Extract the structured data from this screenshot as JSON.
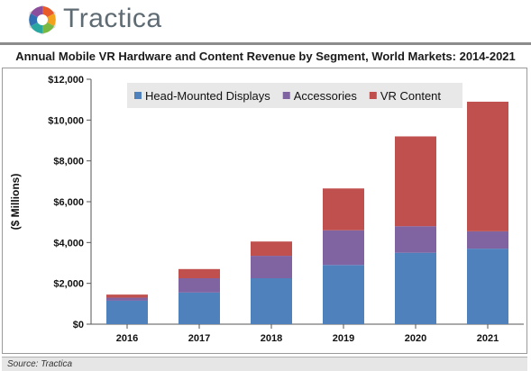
{
  "brand": {
    "name": "Tractica",
    "logo_icon": "hexagon-swirl-logo"
  },
  "source_text": "Source: Tractica",
  "chart_data": {
    "type": "bar",
    "stacked": true,
    "title": "Annual Mobile VR Hardware and Content Revenue by Segment, World Markets: 2014-2021",
    "xlabel": "",
    "ylabel": "($ Millions)",
    "categories": [
      "2016",
      "2017",
      "2018",
      "2019",
      "2020",
      "2021"
    ],
    "series": [
      {
        "name": "Head-Mounted Displays",
        "color": "#4f81bd",
        "values": [
          1150,
          1550,
          2250,
          2900,
          3500,
          3700
        ]
      },
      {
        "name": "Accessories",
        "color": "#8064a2",
        "values": [
          150,
          700,
          1100,
          1700,
          1300,
          850
        ]
      },
      {
        "name": "VR Content",
        "color": "#c0504d",
        "values": [
          150,
          450,
          700,
          2050,
          4400,
          6350
        ]
      }
    ],
    "ylim": [
      0,
      12000
    ],
    "yticks": [
      0,
      2000,
      4000,
      6000,
      8000,
      10000,
      12000
    ],
    "ytick_labels": [
      "$0",
      "$2,000",
      "$4,000",
      "$6,000",
      "$8,000",
      "$10,000",
      "$12,000"
    ],
    "grid": false,
    "legend_position": "top"
  }
}
